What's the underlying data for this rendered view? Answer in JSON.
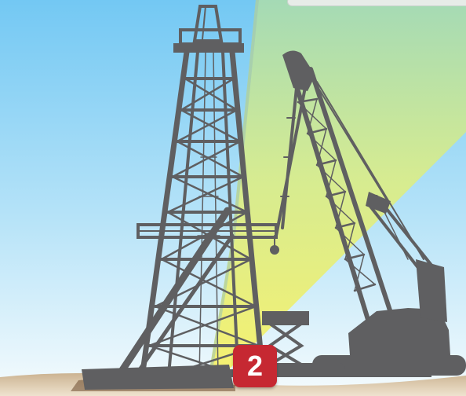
{
  "illustration": {
    "subject": "oil-derrick-and-crawler-crane",
    "colors": {
      "sky_top": "#73c8f3",
      "sky_bottom": "#f2f9fd",
      "beam_top": "#a9dbb0",
      "beam_bottom": "#f7f169",
      "structure": "#5f5f61",
      "ground": "#d9c6a6",
      "badge": "#c62832"
    }
  },
  "step_badge": {
    "label": "2"
  }
}
